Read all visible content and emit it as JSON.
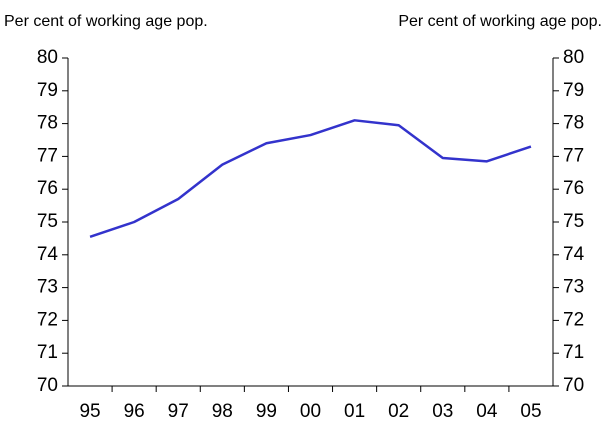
{
  "chart_data": {
    "type": "line",
    "ylabel": "Per cent of working age pop.",
    "y2label": "Per cent of working age pop.",
    "categories": [
      "95",
      "96",
      "97",
      "98",
      "99",
      "00",
      "01",
      "02",
      "03",
      "04",
      "05"
    ],
    "series": [
      {
        "color": "#3333cc",
        "values": [
          74.55,
          75.0,
          75.7,
          76.75,
          77.4,
          77.65,
          78.1,
          77.95,
          76.95,
          76.85,
          77.3
        ]
      }
    ],
    "ylim": [
      70,
      80
    ],
    "yticks": [
      70,
      71,
      72,
      73,
      74,
      75,
      76,
      77,
      78,
      79,
      80
    ],
    "y2lim": [
      70,
      80
    ],
    "y2ticks": [
      70,
      71,
      72,
      73,
      74,
      75,
      76,
      77,
      78,
      79,
      80
    ],
    "grid": false
  }
}
